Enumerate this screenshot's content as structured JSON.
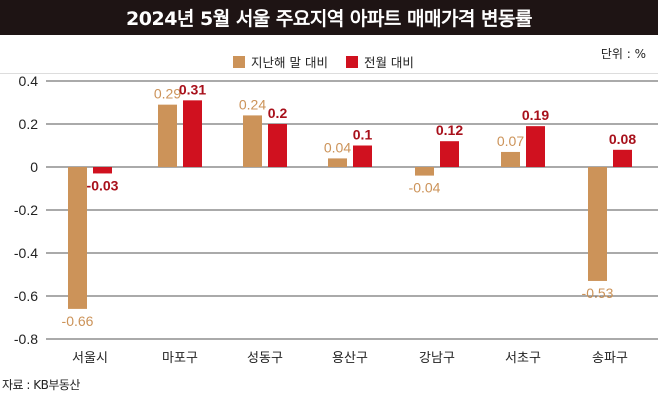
{
  "title": "2024년 5월 서울 주요지역 아파트 매매가격 변동률",
  "unit_label": "단위 : %",
  "source": "자료 : KB부동산",
  "colors": {
    "prev_year_end": "#cc9359",
    "prev_month": "#d0111f",
    "prev_month_label": "#a8101b"
  },
  "legend": [
    {
      "label": "지난해 말 대비",
      "color": "#cc9359"
    },
    {
      "label": "전월 대비",
      "color": "#d0111f"
    }
  ],
  "chart_data": {
    "type": "bar",
    "title": "2024년 5월 서울 주요지역 아파트 매매가격 변동률",
    "xlabel": "",
    "ylabel": "",
    "unit": "%",
    "categories": [
      "서울시",
      "마포구",
      "성동구",
      "용산구",
      "강남구",
      "서초구",
      "송파구"
    ],
    "series": [
      {
        "name": "지난해 말 대비",
        "values": [
          -0.66,
          0.29,
          0.24,
          0.04,
          -0.04,
          0.07,
          -0.53
        ]
      },
      {
        "name": "전월 대비",
        "values": [
          -0.03,
          0.31,
          0.2,
          0.1,
          0.12,
          0.19,
          0.08
        ]
      }
    ],
    "value_labels": [
      [
        "-0.66",
        "0.29",
        "0.24",
        "0.04",
        "-0.04",
        "0.07",
        "-0.53"
      ],
      [
        "-0.03",
        "0.31",
        "0.2",
        "0.1",
        "0.12",
        "0.19",
        "0.08"
      ]
    ],
    "ylim": [
      -0.8,
      0.4
    ],
    "yticks": [
      0.4,
      0.2,
      0,
      -0.2,
      -0.4,
      -0.6,
      -0.8
    ],
    "ytick_labels": [
      "0.4",
      "0.2",
      "0",
      "-0.2",
      "-0.4",
      "-0.6",
      "-0.8"
    ],
    "grid": true,
    "legend_position": "top-center"
  }
}
